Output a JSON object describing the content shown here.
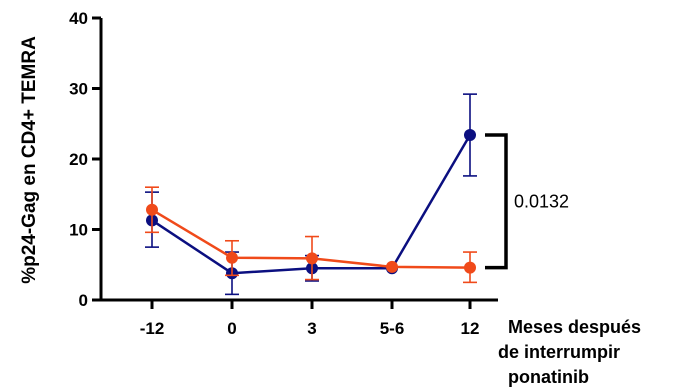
{
  "chart_data": {
    "type": "line",
    "title": "",
    "ylabel": "%p24-Gag en CD4+ TEMRA",
    "xlabel_lines": [
      "Meses después",
      "de interrumpir",
      "ponatinib"
    ],
    "categories": [
      "-12",
      "0",
      "3",
      "5-6",
      "12"
    ],
    "ylim": [
      0,
      40
    ],
    "yticks": [
      0,
      10,
      20,
      30,
      40
    ],
    "grid": false,
    "legend": "none",
    "series": [
      {
        "color": "#0b0f80",
        "values": [
          11.3,
          3.8,
          4.5,
          4.5,
          23.4
        ],
        "err_low": [
          7.5,
          0.8,
          2.7,
          4.5,
          17.6
        ],
        "err_high": [
          15.3,
          6.8,
          6.3,
          4.5,
          29.2
        ]
      },
      {
        "color": "#f04a1a",
        "values": [
          12.8,
          6.0,
          5.9,
          4.7,
          4.6
        ],
        "err_low": [
          9.6,
          3.5,
          2.9,
          4.7,
          2.5
        ],
        "err_high": [
          16.0,
          8.4,
          9.0,
          4.7,
          6.8
        ]
      }
    ],
    "annotations": [
      {
        "text": "0.0132",
        "bracket_from": 23.4,
        "bracket_to": 4.6
      }
    ]
  }
}
